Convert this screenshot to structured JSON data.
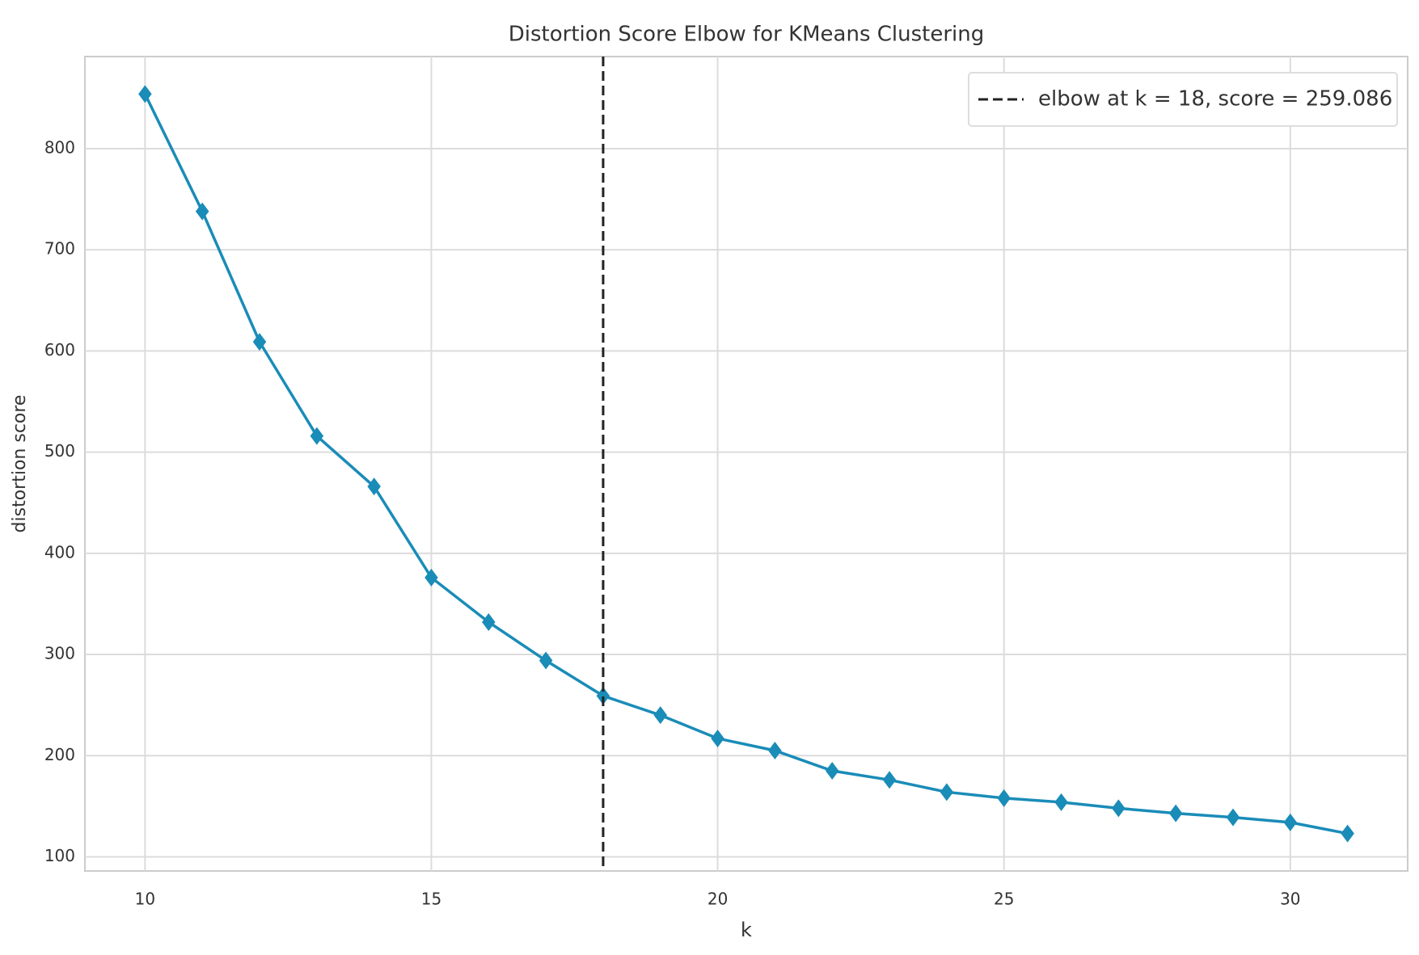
{
  "chart_data": {
    "type": "line",
    "title": "Distortion Score Elbow for KMeans Clustering",
    "x_label": "k",
    "y_label": "distortion score",
    "x": [
      10,
      11,
      12,
      13,
      14,
      15,
      16,
      17,
      18,
      19,
      20,
      21,
      22,
      23,
      24,
      25,
      26,
      27,
      28,
      29,
      30,
      31
    ],
    "series": [
      {
        "name": "distortion score",
        "color": "#1a8cb8",
        "values": [
          854,
          738,
          609,
          516,
          466,
          376,
          332,
          294,
          259.086,
          240,
          217,
          205,
          185,
          176,
          164,
          158,
          154,
          148,
          143,
          139,
          134,
          123
        ]
      }
    ],
    "elbow": {
      "x": 18,
      "label": "elbow at k = 18, score = 259.086"
    },
    "xlim": [
      8.95,
      32.05
    ],
    "xticks": [
      10,
      15,
      20,
      25,
      30
    ],
    "ylim": [
      86,
      891
    ],
    "yticks": [
      100,
      200,
      300,
      400,
      500,
      600,
      700,
      800
    ],
    "grid": true,
    "legend": "upper right"
  }
}
